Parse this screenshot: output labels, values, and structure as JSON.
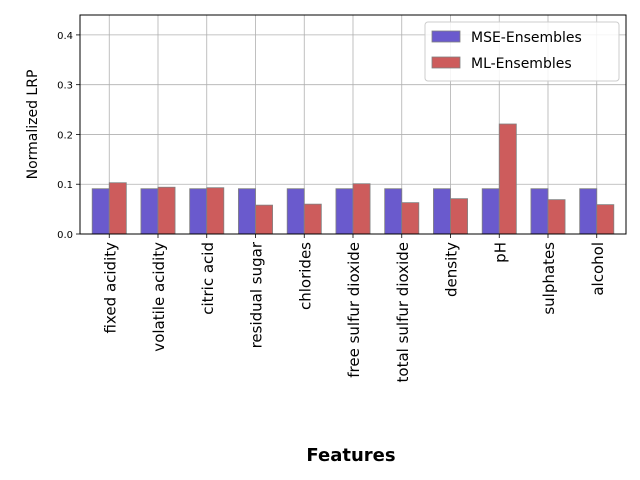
{
  "chart_data": {
    "type": "bar",
    "xlabel": "Features",
    "ylabel": "Normalized LRP",
    "ylim": [
      0,
      0.44
    ],
    "yticks": [
      0.0,
      0.1,
      0.2,
      0.3,
      0.4
    ],
    "grid": true,
    "legend": "top-right",
    "categories": [
      "fixed acidity",
      "volatile acidity",
      "citric acid",
      "residual sugar",
      "chlorides",
      "free sulfur dioxide",
      "total sulfur dioxide",
      "density",
      "pH",
      "sulphates",
      "alcohol"
    ],
    "series": [
      {
        "name": "MSE-Ensembles",
        "color": "#6a5acd",
        "values": [
          0.091,
          0.091,
          0.091,
          0.091,
          0.091,
          0.091,
          0.091,
          0.091,
          0.091,
          0.091,
          0.091
        ]
      },
      {
        "name": "ML-Ensembles",
        "color": "#cd5c5c",
        "values": [
          0.103,
          0.094,
          0.093,
          0.058,
          0.06,
          0.101,
          0.063,
          0.071,
          0.221,
          0.069,
          0.059
        ]
      }
    ]
  }
}
